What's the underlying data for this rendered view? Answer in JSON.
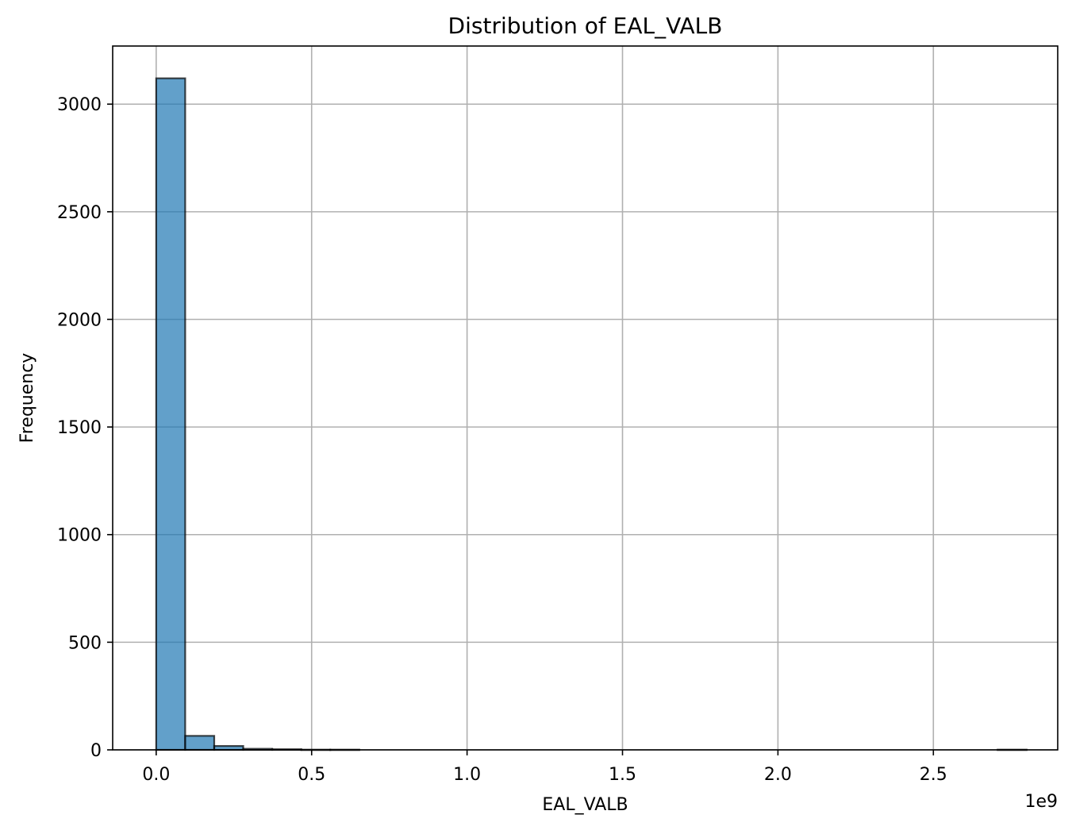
{
  "chart_data": {
    "type": "bar",
    "title": "Distribution of EAL_VALB",
    "xlabel": "EAL_VALB",
    "ylabel": "Frequency",
    "x_offset_label": "1e9",
    "xlim": [
      -0.14,
      2.9
    ],
    "ylim": [
      0,
      3270
    ],
    "grid": true,
    "x_ticks": [
      0.0,
      0.5,
      1.0,
      1.5,
      2.0,
      2.5
    ],
    "x_tick_labels": [
      "0.0",
      "0.5",
      "1.0",
      "1.5",
      "2.0",
      "2.5"
    ],
    "y_ticks": [
      0,
      500,
      1000,
      1500,
      2000,
      2500,
      3000
    ],
    "y_tick_labels": [
      "0",
      "500",
      "1000",
      "1500",
      "2000",
      "2500",
      "3000"
    ],
    "bin_edges": [
      0.0,
      0.0933,
      0.1867,
      0.28,
      0.3733,
      0.4667,
      0.56,
      0.6533,
      0.7467,
      0.84,
      0.9333,
      1.0267,
      1.12,
      1.2133,
      1.3067,
      1.4,
      1.4933,
      1.5867,
      1.68,
      1.7733,
      1.8667,
      1.96,
      2.0533,
      2.1467,
      2.24,
      2.3333,
      2.4267,
      2.52,
      2.6133,
      2.7067,
      2.8
    ],
    "values": [
      3120,
      65,
      18,
      5,
      3,
      1,
      1,
      0,
      0,
      0,
      0,
      0,
      0,
      0,
      0,
      0,
      0,
      0,
      0,
      0,
      0,
      0,
      0,
      0,
      0,
      0,
      0,
      0,
      0,
      1
    ],
    "colors": {
      "bar_fill": "#1f77b4",
      "bar_alpha": 0.7,
      "bar_edge": "#000000",
      "grid": "#b0b0b0"
    }
  }
}
